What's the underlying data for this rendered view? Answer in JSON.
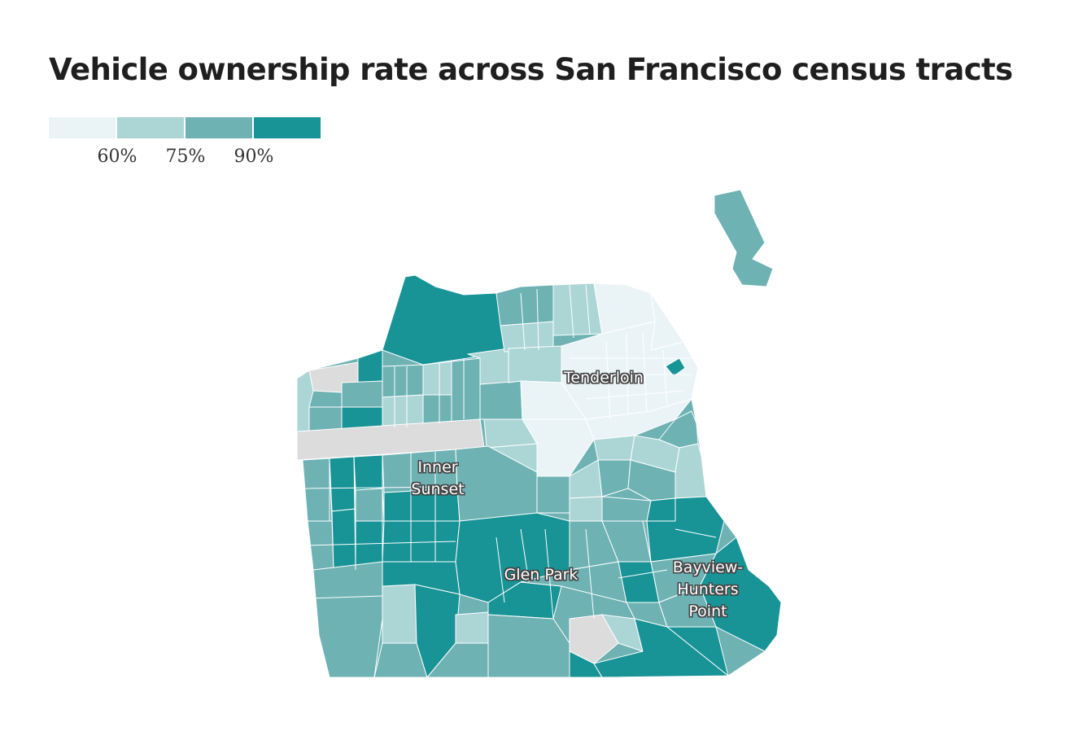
{
  "title": "Vehicle ownership rate across San Francisco census tracts",
  "legend": {
    "colors": [
      "#eaf4f7",
      "#acd5d6",
      "#6eb2b4",
      "#189396"
    ],
    "ticks": [
      "60%",
      "75%",
      "90%"
    ],
    "thresholds": [
      60,
      75,
      90
    ],
    "no_data_color": "#dcdcdc"
  },
  "labels": {
    "tenderloin": "Tenderloin",
    "inner_sunset": [
      "Inner",
      "Sunset"
    ],
    "glen_park": "Glen Park",
    "bayview": [
      "Bayview-",
      "Hunters",
      "Point"
    ]
  },
  "map_data": {
    "region": "San Francisco",
    "unit": "census tract",
    "class_counts_note": "choropleth classes: below 60%, 60–75%, 75–90%, above 90%, no data"
  }
}
